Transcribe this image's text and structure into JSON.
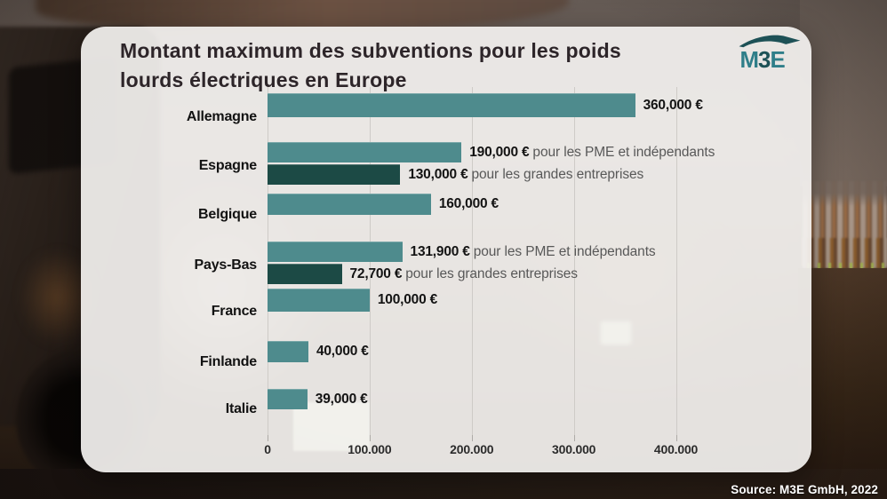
{
  "title": {
    "line1": "Montant maximum des subventions pour les poids",
    "line2": "lourds électriques en Europe"
  },
  "logo": {
    "m": "M",
    "three": "3",
    "e": "E"
  },
  "source": {
    "text": "Source: M3E GmbH, 2022"
  },
  "colors": {
    "bar_light": "#4E8B8D",
    "bar_dark": "#1C4A45",
    "logo_teal": "#2F7E89",
    "logo_dark_teal": "#1D5156"
  },
  "chart_data": {
    "type": "bar",
    "orientation": "horizontal",
    "unit": "EUR",
    "title": "Montant maximum des subventions pour les poids lourds électriques en Europe",
    "xlim": [
      0,
      430000
    ],
    "grid": true,
    "xticks": [
      {
        "value": 0,
        "label": "0"
      },
      {
        "value": 100000,
        "label": "100.000"
      },
      {
        "value": 200000,
        "label": "200.000"
      },
      {
        "value": 300000,
        "label": "300.000"
      },
      {
        "value": 400000,
        "label": "400.000"
      }
    ],
    "rows": [
      {
        "country": "Allemagne",
        "bars": [
          {
            "value": 360000,
            "label": "360,000 €",
            "suffix": "",
            "shade": "light"
          }
        ]
      },
      {
        "country": "Espagne",
        "bars": [
          {
            "value": 190000,
            "label": "190,000 €",
            "suffix": "pour les PME et indépendants",
            "shade": "light"
          },
          {
            "value": 130000,
            "label": "130,000 €",
            "suffix": "pour les grandes entreprises",
            "shade": "dark"
          }
        ]
      },
      {
        "country": "Belgique",
        "bars": [
          {
            "value": 160000,
            "label": "160,000 €",
            "suffix": "",
            "shade": "light"
          }
        ]
      },
      {
        "country": "Pays-Bas",
        "bars": [
          {
            "value": 131900,
            "label": "131,900 €",
            "suffix": "pour les PME et indépendants",
            "shade": "light"
          },
          {
            "value": 72700,
            "label": "72,700 €",
            "suffix": "pour les grandes entreprises",
            "shade": "dark"
          }
        ]
      },
      {
        "country": "France",
        "bars": [
          {
            "value": 100000,
            "label": "100,000 €",
            "suffix": "",
            "shade": "light"
          }
        ]
      },
      {
        "country": "Finlande",
        "bars": [
          {
            "value": 40000,
            "label": "40,000 €",
            "suffix": "",
            "shade": "light"
          }
        ]
      },
      {
        "country": "Italie",
        "bars": [
          {
            "value": 39000,
            "label": "39,000 €",
            "suffix": "",
            "shade": "light"
          }
        ]
      }
    ]
  }
}
